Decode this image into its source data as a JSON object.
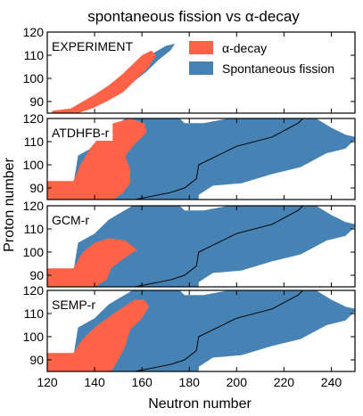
{
  "chart_data": {
    "type": "heatmap",
    "title": "spontaneous fission vs α-decay",
    "xlabel": "Neutron number",
    "ylabel": "Proton number",
    "xlim": [
      120,
      250
    ],
    "xticks": [
      120,
      140,
      160,
      180,
      200,
      220,
      240
    ],
    "ylim": [
      85,
      120
    ],
    "yticks": [
      90,
      100,
      110,
      120
    ],
    "grid": false,
    "legend": {
      "placement": "top-right of first panel",
      "entries": [
        {
          "label": "α-decay",
          "color": "#ff6347"
        },
        {
          "label": "Spontaneous fission",
          "color": "#4682b4"
        }
      ]
    },
    "colors": {
      "alpha": "#ff6347",
      "sf": "#4682b4",
      "boundary": "#000000"
    },
    "panels": [
      {
        "label": "EXPERIMENT",
        "alpha_region": [
          [
            122,
            86
          ],
          [
            130,
            87
          ],
          [
            135,
            90
          ],
          [
            140,
            93
          ],
          [
            146,
            97
          ],
          [
            152,
            102
          ],
          [
            156,
            106
          ],
          [
            160,
            110
          ],
          [
            164,
            112
          ],
          [
            166,
            110
          ],
          [
            163,
            105
          ],
          [
            157,
            99
          ],
          [
            152,
            94
          ],
          [
            145,
            90
          ],
          [
            139,
            87
          ],
          [
            133,
            85
          ],
          [
            122,
            85
          ]
        ],
        "sf_region": [
          [
            150,
            96
          ],
          [
            156,
            100
          ],
          [
            160,
            106
          ],
          [
            165,
            111
          ],
          [
            170,
            114
          ],
          [
            174,
            115
          ],
          [
            172,
            112
          ],
          [
            167,
            108
          ],
          [
            162,
            103
          ],
          [
            157,
            99
          ],
          [
            152,
            95
          ]
        ],
        "boundary": []
      },
      {
        "label": "ATDHFB-r",
        "alpha_region": [
          [
            120,
            85
          ],
          [
            120,
            93
          ],
          [
            131,
            93
          ],
          [
            134,
            100
          ],
          [
            138,
            107
          ],
          [
            143,
            113
          ],
          [
            148,
            118
          ],
          [
            155,
            120
          ],
          [
            161,
            118
          ],
          [
            162,
            114
          ],
          [
            157,
            109
          ],
          [
            153,
            104
          ],
          [
            155,
            98
          ],
          [
            155,
            92
          ],
          [
            152,
            88
          ],
          [
            148,
            85
          ]
        ],
        "sf_region": [
          [
            130,
            85
          ],
          [
            133,
            104
          ],
          [
            140,
            108
          ],
          [
            145,
            114
          ],
          [
            153,
            120
          ],
          [
            176,
            120
          ],
          [
            178,
            118
          ],
          [
            186,
            118
          ],
          [
            202,
            121
          ],
          [
            232,
            121
          ],
          [
            240,
            116
          ],
          [
            246,
            113
          ],
          [
            250,
            112
          ],
          [
            250,
            111
          ],
          [
            246,
            107
          ],
          [
            238,
            105
          ],
          [
            227,
            99
          ],
          [
            215,
            96
          ],
          [
            202,
            92
          ],
          [
            190,
            91
          ],
          [
            184,
            87
          ],
          [
            184,
            85
          ]
        ],
        "boundary": [
          [
            157,
            85
          ],
          [
            172,
            88
          ],
          [
            178,
            90
          ],
          [
            183,
            94
          ],
          [
            184,
            100
          ],
          [
            190,
            103
          ],
          [
            200,
            108
          ],
          [
            215,
            112
          ],
          [
            226,
            118
          ],
          [
            229,
            121
          ]
        ]
      },
      {
        "label": "GCM-r",
        "alpha_region": [
          [
            120,
            85
          ],
          [
            120,
            93
          ],
          [
            131,
            93
          ],
          [
            135,
            100
          ],
          [
            140,
            104
          ],
          [
            146,
            106
          ],
          [
            153,
            105
          ],
          [
            158,
            101
          ],
          [
            152,
            97
          ],
          [
            147,
            93
          ],
          [
            145,
            88
          ],
          [
            140,
            85
          ]
        ],
        "sf_region": [
          [
            130,
            85
          ],
          [
            133,
            104
          ],
          [
            140,
            108
          ],
          [
            146,
            114
          ],
          [
            156,
            120
          ],
          [
            176,
            120
          ],
          [
            178,
            118
          ],
          [
            186,
            118
          ],
          [
            202,
            121
          ],
          [
            232,
            121
          ],
          [
            240,
            116
          ],
          [
            246,
            113
          ],
          [
            250,
            112
          ],
          [
            250,
            111
          ],
          [
            246,
            107
          ],
          [
            238,
            105
          ],
          [
            227,
            99
          ],
          [
            215,
            96
          ],
          [
            202,
            92
          ],
          [
            190,
            91
          ],
          [
            184,
            87
          ],
          [
            184,
            85
          ]
        ],
        "boundary": [
          [
            157,
            85
          ],
          [
            172,
            88
          ],
          [
            178,
            90
          ],
          [
            183,
            94
          ],
          [
            184,
            100
          ],
          [
            190,
            103
          ],
          [
            200,
            108
          ],
          [
            215,
            112
          ],
          [
            226,
            118
          ],
          [
            229,
            121
          ]
        ]
      },
      {
        "label": "SEMP-r",
        "alpha_region": [
          [
            120,
            85
          ],
          [
            120,
            93
          ],
          [
            131,
            93
          ],
          [
            135,
            99
          ],
          [
            140,
            104
          ],
          [
            148,
            110
          ],
          [
            157,
            116
          ],
          [
            161,
            116
          ],
          [
            163,
            113
          ],
          [
            160,
            108
          ],
          [
            155,
            103
          ],
          [
            153,
            96
          ],
          [
            150,
            90
          ],
          [
            147,
            85
          ]
        ],
        "sf_region": [
          [
            130,
            85
          ],
          [
            133,
            104
          ],
          [
            140,
            108
          ],
          [
            146,
            114
          ],
          [
            156,
            120
          ],
          [
            176,
            120
          ],
          [
            178,
            118
          ],
          [
            186,
            118
          ],
          [
            202,
            121
          ],
          [
            232,
            121
          ],
          [
            240,
            116
          ],
          [
            246,
            113
          ],
          [
            250,
            112
          ],
          [
            250,
            111
          ],
          [
            246,
            107
          ],
          [
            238,
            105
          ],
          [
            227,
            99
          ],
          [
            215,
            96
          ],
          [
            202,
            92
          ],
          [
            190,
            91
          ],
          [
            184,
            87
          ],
          [
            184,
            85
          ]
        ],
        "boundary": [
          [
            157,
            85
          ],
          [
            172,
            88
          ],
          [
            178,
            90
          ],
          [
            183,
            94
          ],
          [
            184,
            100
          ],
          [
            190,
            103
          ],
          [
            200,
            108
          ],
          [
            215,
            112
          ],
          [
            226,
            118
          ],
          [
            229,
            121
          ]
        ]
      }
    ]
  }
}
